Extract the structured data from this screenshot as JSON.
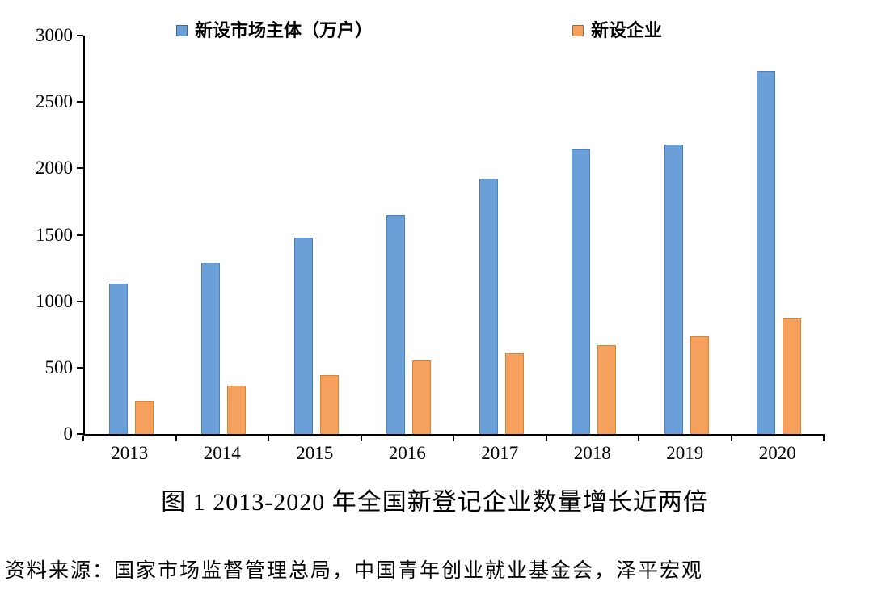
{
  "chart_data": {
    "type": "bar",
    "title": "",
    "categories": [
      "2013",
      "2014",
      "2015",
      "2016",
      "2017",
      "2018",
      "2019",
      "2020"
    ],
    "series": [
      {
        "name": "新设市场主体（万户）",
        "color": "#6b9fd8",
        "values": [
          1131,
          1293,
          1480,
          1651,
          1925,
          2149,
          2180,
          2735
        ]
      },
      {
        "name": "新设企业",
        "color": "#f5a15d",
        "values": [
          250,
          365,
          444,
          553,
          608,
          670,
          739,
          870
        ]
      }
    ],
    "xlabel": "",
    "ylabel": "",
    "ylim": [
      0,
      3000
    ],
    "yticks": [
      0,
      500,
      1000,
      1500,
      2000,
      2500,
      3000
    ],
    "grid": false,
    "legend_position": "top"
  },
  "caption": "图 1 2013-2020 年全国新登记企业数量增长近两倍",
  "source": "资料来源：国家市场监督管理总局，中国青年创业就业基金会，泽平宏观"
}
